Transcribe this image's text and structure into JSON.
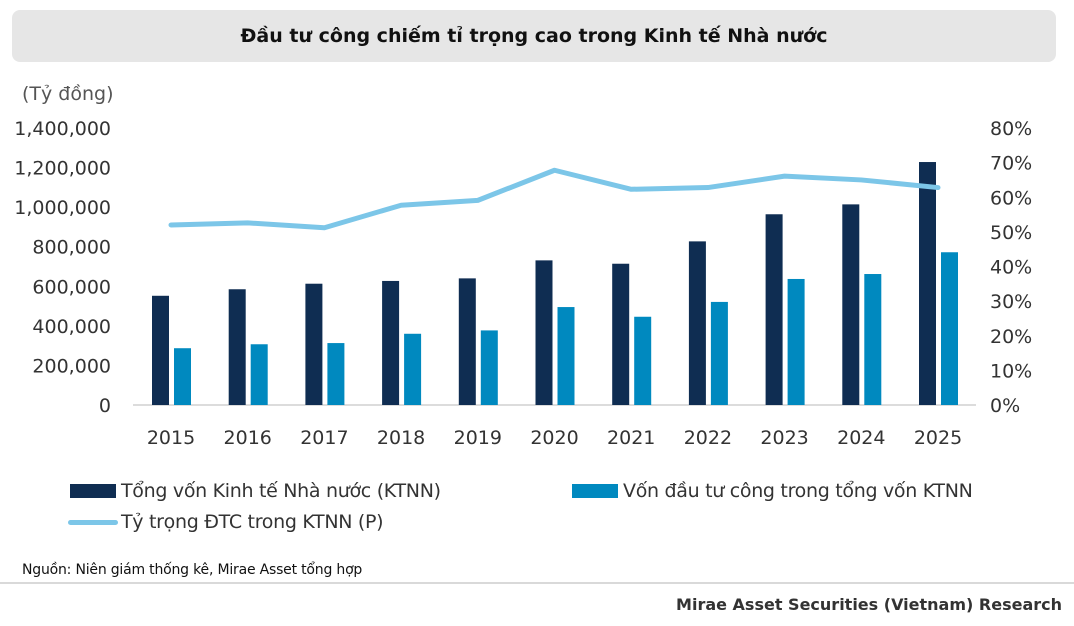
{
  "chart_data": {
    "type": "bar+line",
    "title": "Đầu tư công chiếm tỉ trọng cao trong Kinh tế Nhà nước",
    "ylabel": "(Tỷ đồng)",
    "categories": [
      "2015",
      "2016",
      "2017",
      "2018",
      "2019",
      "2020",
      "2021",
      "2022",
      "2023",
      "2024",
      "2025"
    ],
    "ylim": [
      0,
      1400000
    ],
    "yticks": [
      "0",
      "200,000",
      "400,000",
      "600,000",
      "800,000",
      "1,000,000",
      "1,200,000",
      "1,400,000"
    ],
    "y2lim": [
      0,
      80
    ],
    "y2ticks": [
      "0%",
      "10%",
      "20%",
      "30%",
      "40%",
      "50%",
      "60%",
      "70%",
      "80%"
    ],
    "grid": false,
    "legend_position": "bottom",
    "series": [
      {
        "name": "Tổng vốn Kinh tế Nhà nước (KTNN)",
        "type": "bar",
        "axis": "left",
        "color": "#0f2d52",
        "values": [
          552000,
          585000,
          613000,
          627000,
          640000,
          731000,
          714000,
          827000,
          964000,
          1014000,
          1228000
        ]
      },
      {
        "name": "Vốn đầu tư công trong tổng vốn KTNN",
        "type": "bar",
        "axis": "left",
        "color": "#0089bf",
        "values": [
          287000,
          307000,
          313000,
          360000,
          377000,
          495000,
          446000,
          521000,
          637000,
          662000,
          772000
        ]
      },
      {
        "name": "Tỷ trọng ĐTC trong KTNN (P)",
        "type": "line",
        "axis": "right",
        "color": "#7cc6e8",
        "values": [
          52.0,
          52.6,
          51.2,
          57.7,
          59.1,
          67.8,
          62.3,
          62.8,
          66.1,
          65.0,
          62.8
        ]
      }
    ]
  },
  "source": "Nguồn: Niên giám thống kê, Mirae Asset tổng hợp",
  "footer": "Mirae Asset Securities (Vietnam) Research"
}
